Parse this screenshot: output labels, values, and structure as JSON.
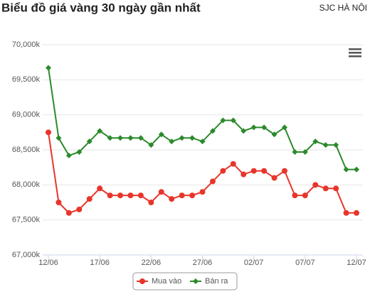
{
  "chart_data": {
    "type": "line",
    "title": "Biểu đồ giá vàng 30 ngày gần nhất",
    "subtitle": "SJC HÀ NỘI",
    "categories": [
      "12/06",
      null,
      null,
      null,
      null,
      "17/06",
      null,
      null,
      null,
      null,
      "22/06",
      null,
      null,
      null,
      null,
      "27/06",
      null,
      null,
      null,
      null,
      "02/07",
      null,
      null,
      null,
      null,
      "07/07",
      null,
      null,
      null,
      null,
      "12/07"
    ],
    "series": [
      {
        "name": "Mua vào",
        "color": "#e8352a",
        "marker": "circle",
        "values": [
          68750,
          67750,
          67600,
          67650,
          67800,
          67950,
          67850,
          67850,
          67850,
          67850,
          67750,
          67900,
          67800,
          67850,
          67850,
          67900,
          68050,
          68200,
          68300,
          68150,
          68200,
          68200,
          68100,
          68200,
          67850,
          67850,
          68000,
          67950,
          67950,
          67600,
          67600
        ]
      },
      {
        "name": "Bán ra",
        "color": "#2b8a2b",
        "marker": "diamond",
        "values": [
          69670,
          68670,
          68420,
          68470,
          68620,
          68770,
          68670,
          68670,
          68670,
          68670,
          68570,
          68720,
          68620,
          68670,
          68670,
          68620,
          68770,
          68920,
          68920,
          68770,
          68820,
          68820,
          68720,
          68820,
          68470,
          68470,
          68620,
          68570,
          68570,
          68220,
          68220
        ]
      }
    ],
    "ylim": [
      67000,
      70000
    ],
    "yticks": [
      {
        "value": 67000,
        "label": "67,000k"
      },
      {
        "value": 67500,
        "label": "67,500k"
      },
      {
        "value": 68000,
        "label": "68,000k"
      },
      {
        "value": 68500,
        "label": "68,500k"
      },
      {
        "value": 69000,
        "label": "69,000k"
      },
      {
        "value": 69500,
        "label": "69,500k"
      },
      {
        "value": 70000,
        "label": "70,000k"
      }
    ],
    "grid": true,
    "legend": "bottom"
  }
}
